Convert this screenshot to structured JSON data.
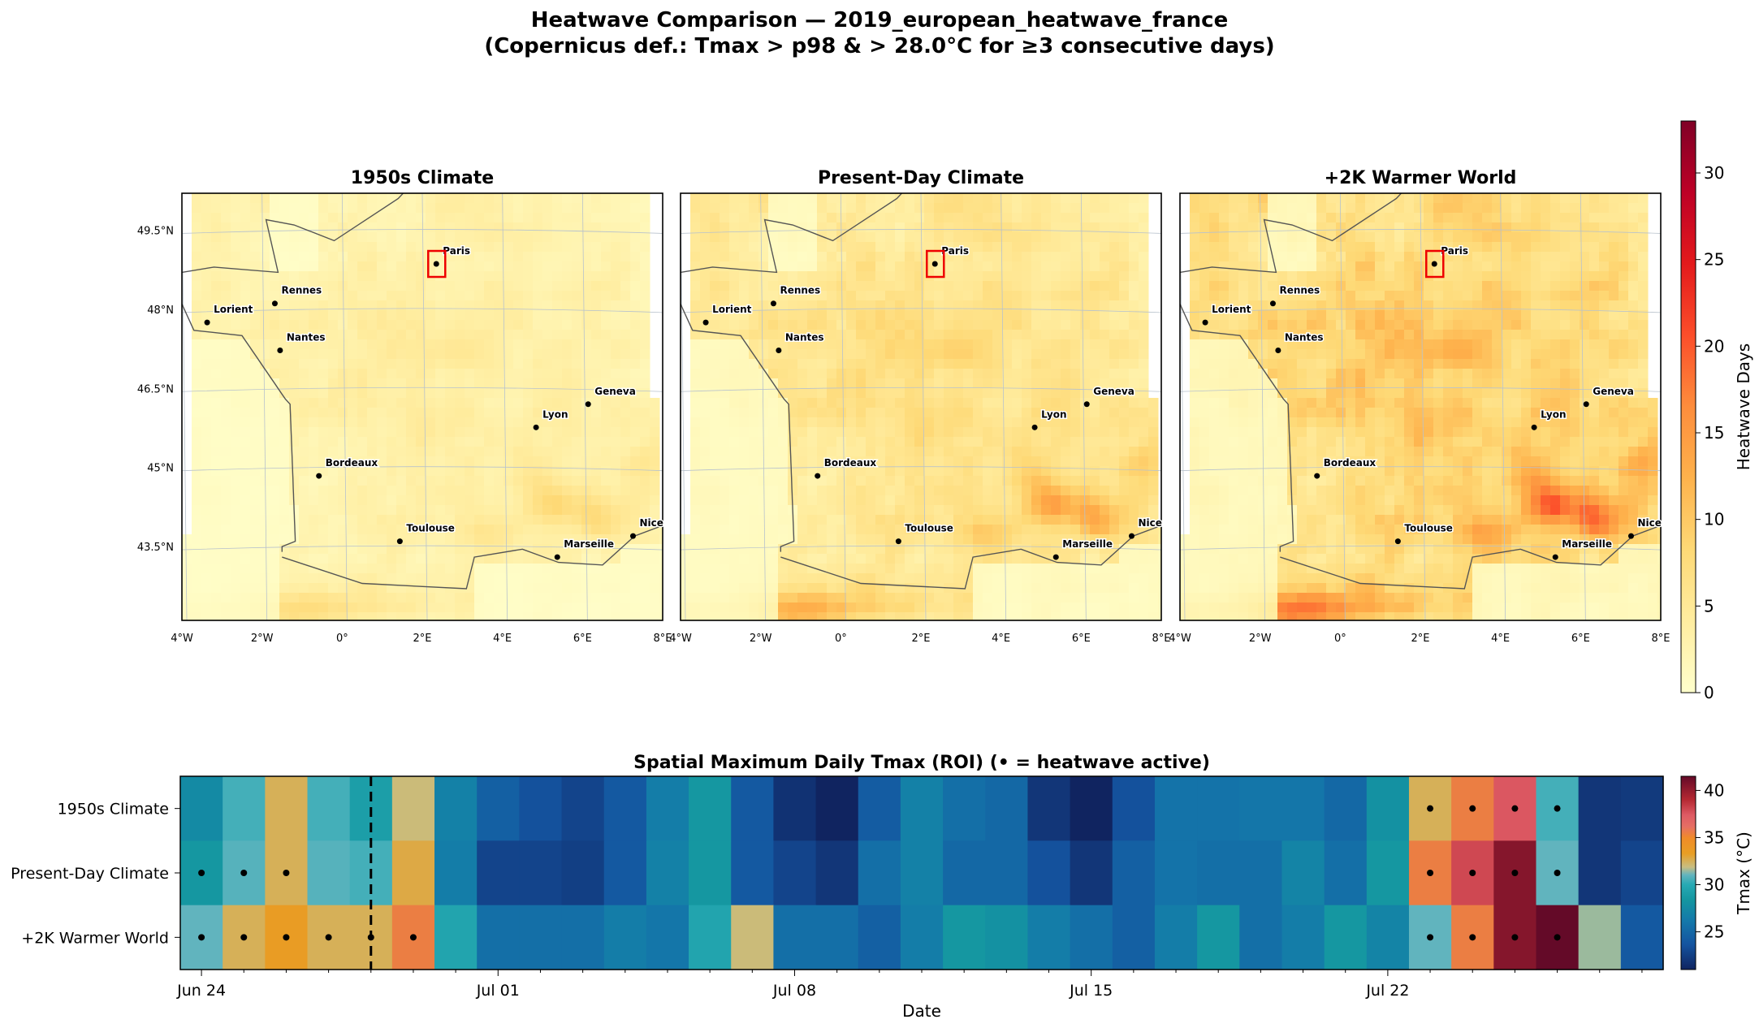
{
  "figure": {
    "title_line1": "Heatwave Comparison — 2019_european_heatwave_france",
    "title_line2": "(Copernicus def.: Tmax > p98 & > 28.0°C for ≥3 consecutive days)"
  },
  "maps": {
    "panels": [
      {
        "title": "1950s Climate",
        "intensity": 0.55
      },
      {
        "title": "Present-Day Climate",
        "intensity": 0.95
      },
      {
        "title": "+2K Warmer World",
        "intensity": 1.35
      }
    ],
    "lat_ticks": [
      "49.5°N",
      "48°N",
      "46.5°N",
      "45°N",
      "43.5°N"
    ],
    "lon_ticks": [
      "4°W",
      "2°W",
      "0°",
      "2°E",
      "4°E",
      "6°E",
      "8°E"
    ],
    "cities": [
      {
        "name": "Paris",
        "lon": 2.35,
        "lat": 48.86,
        "roi": true
      },
      {
        "name": "Rennes",
        "lon": -1.68,
        "lat": 48.11
      },
      {
        "name": "Lorient",
        "lon": -3.37,
        "lat": 47.75
      },
      {
        "name": "Nantes",
        "lon": -1.55,
        "lat": 47.22
      },
      {
        "name": "Geneva",
        "lon": 6.14,
        "lat": 46.2
      },
      {
        "name": "Lyon",
        "lon": 4.84,
        "lat": 45.76
      },
      {
        "name": "Bordeaux",
        "lon": -0.58,
        "lat": 44.84
      },
      {
        "name": "Toulouse",
        "lon": 1.44,
        "lat": 43.6
      },
      {
        "name": "Nice",
        "lon": 7.26,
        "lat": 43.7
      },
      {
        "name": "Marseille",
        "lon": 5.37,
        "lat": 43.3
      }
    ],
    "colorbar": {
      "label": "Heatwave Days",
      "ticks": [
        "0",
        "5",
        "10",
        "15",
        "20",
        "25",
        "30"
      ],
      "range": [
        0,
        33
      ]
    }
  },
  "chart_data": {
    "type": "heatmap",
    "title": "Spatial Maximum Daily Tmax (ROI) (• = heatwave active)",
    "xlabel": "Date",
    "x_ticks": [
      "Jun 24",
      "Jul 01",
      "Jul 08",
      "Jul 15",
      "Jul 22"
    ],
    "start_date": "2019-06-24",
    "days": 35,
    "event_marker_day_index": 4.5,
    "rows": [
      "1950s Climate",
      "Present-Day Climate",
      "+2K Warmer World"
    ],
    "series": [
      {
        "name": "1950s Climate",
        "values": [
          27.5,
          30.5,
          32.5,
          30.5,
          29.0,
          32.0,
          26.8,
          24.5,
          23.5,
          22.8,
          24.0,
          26.5,
          28.5,
          24.0,
          21.8,
          21.0,
          24.2,
          26.8,
          25.5,
          25.0,
          22.0,
          21.0,
          23.5,
          25.8,
          25.8,
          26.0,
          26.0,
          25.0,
          28.0,
          32.5,
          35.5,
          37.5,
          30.5,
          22.0,
          22.2
        ],
        "heatwave": [
          false,
          false,
          false,
          false,
          false,
          false,
          false,
          false,
          false,
          false,
          false,
          false,
          false,
          false,
          false,
          false,
          false,
          false,
          false,
          false,
          false,
          false,
          false,
          false,
          false,
          false,
          false,
          false,
          false,
          true,
          true,
          true,
          true,
          false,
          false
        ]
      },
      {
        "name": "Present-Day Climate",
        "values": [
          28.5,
          30.8,
          32.5,
          30.8,
          30.5,
          32.8,
          26.5,
          22.8,
          22.8,
          22.5,
          24.0,
          26.8,
          28.5,
          24.0,
          22.8,
          22.0,
          25.5,
          26.8,
          25.0,
          25.0,
          23.5,
          22.0,
          24.5,
          25.8,
          25.5,
          25.5,
          27.0,
          25.5,
          28.5,
          35.5,
          38.0,
          40.5,
          31.0,
          22.0,
          22.8
        ],
        "heatwave": [
          true,
          true,
          true,
          false,
          false,
          false,
          false,
          false,
          false,
          false,
          false,
          false,
          false,
          false,
          false,
          false,
          false,
          false,
          false,
          false,
          false,
          false,
          false,
          false,
          false,
          false,
          false,
          false,
          false,
          true,
          true,
          true,
          true,
          false,
          false
        ]
      },
      {
        "name": "+2K Warmer World",
        "values": [
          31.0,
          32.5,
          33.5,
          32.5,
          32.5,
          35.5,
          29.5,
          25.5,
          25.5,
          25.5,
          26.5,
          26.0,
          29.5,
          32.0,
          25.5,
          25.5,
          24.5,
          26.5,
          28.5,
          28.0,
          26.5,
          25.5,
          24.5,
          26.5,
          28.5,
          25.5,
          26.5,
          28.5,
          27.0,
          31.0,
          35.5,
          40.5,
          41.5,
          31.5,
          24.0
        ],
        "heatwave": [
          true,
          true,
          true,
          true,
          true,
          true,
          false,
          false,
          false,
          false,
          false,
          false,
          false,
          false,
          false,
          false,
          false,
          false,
          false,
          false,
          false,
          false,
          false,
          false,
          false,
          false,
          false,
          false,
          false,
          true,
          true,
          true,
          true,
          false,
          false
        ]
      }
    ],
    "colorbar": {
      "label": "Tmax (°C)",
      "ticks": [
        "25",
        "30",
        "35",
        "40"
      ],
      "range": [
        21,
        41.5
      ]
    }
  }
}
